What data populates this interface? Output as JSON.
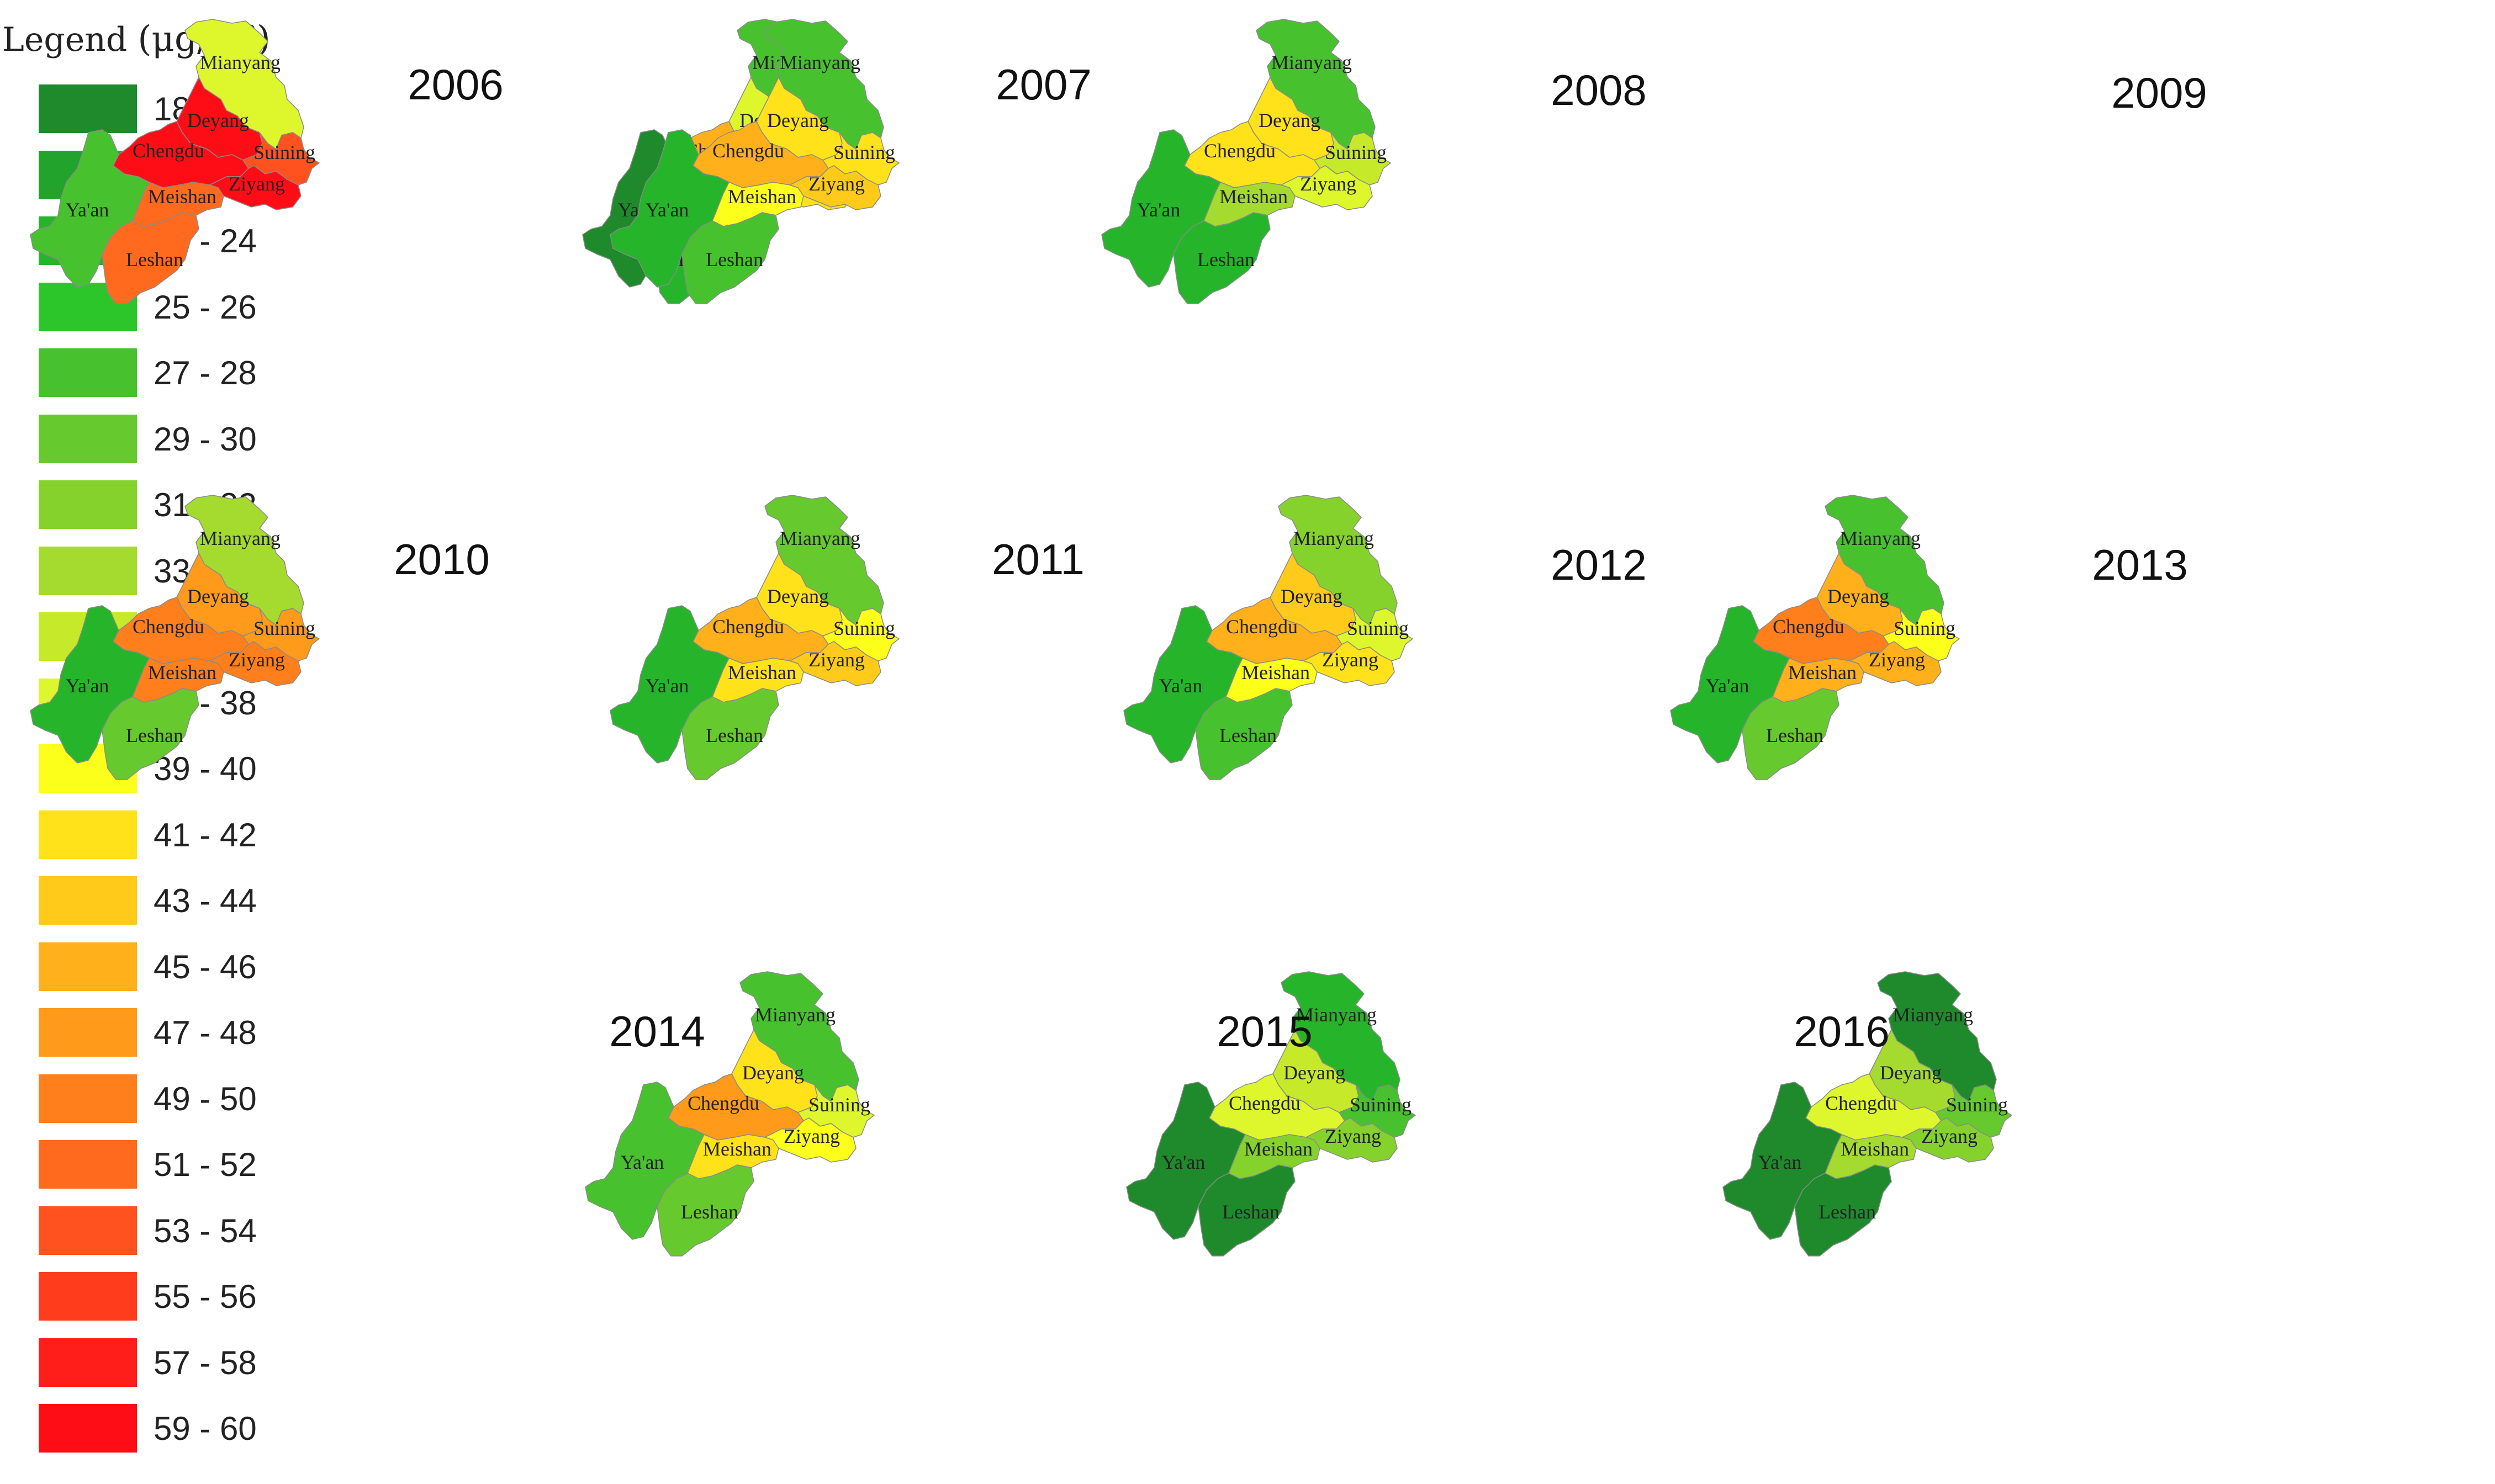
{
  "legend": {
    "title": "Legend",
    "unit": "(μg/m³)",
    "bins": [
      {
        "range": "18 - 20",
        "color": "#1e8a2c"
      },
      {
        "range": "21 - 22",
        "color": "#22a32c"
      },
      {
        "range": "23 - 24",
        "color": "#26b52a"
      },
      {
        "range": "25 - 26",
        "color": "#2cc62a"
      },
      {
        "range": "27 - 28",
        "color": "#47c22e"
      },
      {
        "range": "29 - 30",
        "color": "#66c92e"
      },
      {
        "range": "31 - 32",
        "color": "#86d22d"
      },
      {
        "range": "33 - 34",
        "color": "#a4db2e"
      },
      {
        "range": "35 - 36",
        "color": "#c6e92a"
      },
      {
        "range": "37 - 38",
        "color": "#def62c"
      },
      {
        "range": "39 - 40",
        "color": "#fbff1a"
      },
      {
        "range": "41 - 42",
        "color": "#ffe21a"
      },
      {
        "range": "43 - 44",
        "color": "#ffca1a"
      },
      {
        "range": "45 - 46",
        "color": "#ffb01a"
      },
      {
        "range": "47 - 48",
        "color": "#ff9a1a"
      },
      {
        "range": "49 - 50",
        "color": "#ff7f1c"
      },
      {
        "range": "51 - 52",
        "color": "#ff6a1e"
      },
      {
        "range": "53 - 54",
        "color": "#ff521e"
      },
      {
        "range": "55 - 56",
        "color": "#ff3c1c"
      },
      {
        "range": "57 - 58",
        "color": "#ff1e1a"
      },
      {
        "range": "59 - 60",
        "color": "#ff0d16"
      }
    ]
  },
  "region_names": [
    "Mianyang",
    "Deyang",
    "Chengdu",
    "Suining",
    "Ziyang",
    "Meishan",
    "Ya'an",
    "Leshan"
  ],
  "maps": [
    {
      "year": "2006",
      "colors": {
        "Mianyang": "#def62c",
        "Deyang": "#ff0d16",
        "Chengdu": "#ff0d16",
        "Suining": "#ff521e",
        "Ziyang": "#ff0d16",
        "Meishan": "#ff6a1e",
        "Ya'an": "#47c22e",
        "Leshan": "#ff6a1e"
      }
    },
    {
      "year": "2007",
      "colors": {
        "Mianyang": "#47c22e",
        "Deyang": "#def62c",
        "Chengdu": "#ffb01a",
        "Suining": "#ffca1a",
        "Ziyang": "#ffe21a",
        "Meishan": "#c6e92a",
        "Ya'an": "#1e8a2c",
        "Leshan": "#26b52a"
      }
    },
    {
      "year": "2008",
      "colors": {
        "Mianyang": "#47c22e",
        "Deyang": "#ffe21a",
        "Chengdu": "#ffb01a",
        "Suining": "#ffe21a",
        "Ziyang": "#ffca1a",
        "Meishan": "#fbff1a",
        "Ya'an": "#26b52a",
        "Leshan": "#47c22e"
      }
    },
    {
      "year": "2009",
      "colors": {
        "Mianyang": "#47c22e",
        "Deyang": "#ffe21a",
        "Chengdu": "#ffe21a",
        "Suining": "#c6e92a",
        "Ziyang": "#def62c",
        "Meishan": "#a4db2e",
        "Ya'an": "#26b52a",
        "Leshan": "#26b52a"
      }
    },
    {
      "year": "2010",
      "colors": {
        "Mianyang": "#a4db2e",
        "Deyang": "#ff9a1a",
        "Chengdu": "#ff7f1c",
        "Suining": "#ff9a1a",
        "Ziyang": "#ff7f1c",
        "Meishan": "#ff7f1c",
        "Ya'an": "#26b52a",
        "Leshan": "#66c92e"
      }
    },
    {
      "year": "2011",
      "colors": {
        "Mianyang": "#66c92e",
        "Deyang": "#ffe21a",
        "Chengdu": "#ffb01a",
        "Suining": "#fbff1a",
        "Ziyang": "#ffca1a",
        "Meishan": "#ffe21a",
        "Ya'an": "#26b52a",
        "Leshan": "#66c92e"
      }
    },
    {
      "year": "2012",
      "colors": {
        "Mianyang": "#86d22d",
        "Deyang": "#ffca1a",
        "Chengdu": "#ffb01a",
        "Suining": "#def62c",
        "Ziyang": "#ffe21a",
        "Meishan": "#fbff1a",
        "Ya'an": "#26b52a",
        "Leshan": "#47c22e"
      }
    },
    {
      "year": "2013",
      "colors": {
        "Mianyang": "#47c22e",
        "Deyang": "#ffb01a",
        "Chengdu": "#ff7f1c",
        "Suining": "#fbff1a",
        "Ziyang": "#ffb01a",
        "Meishan": "#ffb01a",
        "Ya'an": "#26b52a",
        "Leshan": "#66c92e"
      }
    },
    {
      "year": "2014",
      "colors": {
        "Mianyang": "#47c22e",
        "Deyang": "#ffe21a",
        "Chengdu": "#ff9a1a",
        "Suining": "#def62c",
        "Ziyang": "#fbff1a",
        "Meishan": "#ffe21a",
        "Ya'an": "#47c22e",
        "Leshan": "#66c92e"
      }
    },
    {
      "year": "2015",
      "colors": {
        "Mianyang": "#26b52a",
        "Deyang": "#c6e92a",
        "Chengdu": "#def62c",
        "Suining": "#47c22e",
        "Ziyang": "#86d22d",
        "Meishan": "#86d22d",
        "Ya'an": "#1e8a2c",
        "Leshan": "#1e8a2c"
      }
    },
    {
      "year": "2016",
      "colors": {
        "Mianyang": "#1e8a2c",
        "Deyang": "#a4db2e",
        "Chengdu": "#def62c",
        "Suining": "#66c92e",
        "Ziyang": "#86d22d",
        "Meishan": "#a4db2e",
        "Ya'an": "#1e8a2c",
        "Leshan": "#1e8a2c"
      }
    }
  ]
}
